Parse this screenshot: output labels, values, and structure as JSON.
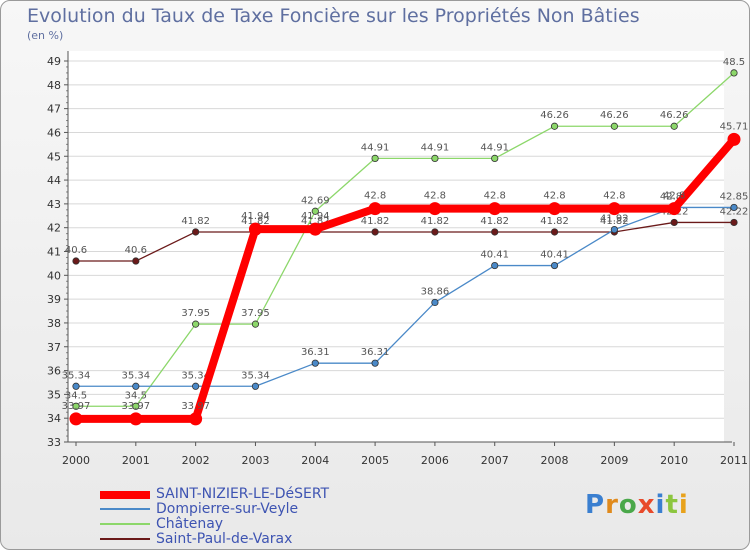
{
  "title": "Evolution du Taux de Taxe Foncière sur les Propriétés Non Bâties",
  "unit": "(en %)",
  "logo_text": "Proxiti",
  "chart_data": {
    "type": "line",
    "title": "Evolution du Taux de Taxe Foncière sur les Propriétés Non Bâties",
    "ylabel": "(en %)",
    "x": [
      "2000",
      "2001",
      "2002",
      "2003",
      "2004",
      "2005",
      "2006",
      "2007",
      "2008",
      "2009",
      "2010",
      "2011"
    ],
    "ylim": [
      33,
      49
    ],
    "yticks": [
      33,
      34,
      35,
      36,
      37,
      38,
      39,
      40,
      41,
      42,
      43,
      44,
      45,
      46,
      47,
      48,
      49
    ],
    "series": [
      {
        "name": "Saint-Paul-de-Varax",
        "color": "#6b1a1a",
        "values": [
          40.6,
          40.6,
          41.82,
          41.82,
          41.82,
          41.82,
          41.82,
          41.82,
          41.82,
          41.82,
          42.22,
          42.22
        ],
        "labels": [
          "40.6",
          "40.6",
          "41.82",
          "41.82",
          "41.82",
          "41.82",
          "41.82",
          "41.82",
          "41.82",
          "41.82",
          "42.22",
          "42.22"
        ]
      },
      {
        "name": "Châtenay",
        "color": "#8cd76a",
        "values": [
          34.5,
          34.5,
          37.95,
          37.95,
          42.69,
          44.91,
          44.91,
          44.91,
          46.26,
          46.26,
          46.26,
          48.5
        ],
        "labels": [
          "34.5",
          "34.5",
          "37.95",
          "37.95",
          "42.69",
          "44.91",
          "44.91",
          "44.91",
          "46.26",
          "46.26",
          "46.26",
          "48.5"
        ]
      },
      {
        "name": "Dompierre-sur-Veyle",
        "color": "#4a89c8",
        "values": [
          35.34,
          35.34,
          35.34,
          35.34,
          36.31,
          36.31,
          38.86,
          40.41,
          40.41,
          41.92,
          42.85,
          42.85
        ],
        "labels": [
          "35.34",
          "35.34",
          "35.34",
          "35.34",
          "36.31",
          "36.31",
          "38.86",
          "40.41",
          "40.41",
          "41.92",
          "42.85",
          "42.85"
        ]
      },
      {
        "name": "SAINT-NIZIER-LE-DéSERT",
        "color": "#ff0000",
        "values": [
          33.97,
          33.97,
          33.97,
          41.94,
          41.94,
          42.8,
          42.8,
          42.8,
          42.8,
          42.8,
          42.8,
          45.71
        ],
        "labels": [
          "33.97",
          "33.97",
          "33.97",
          "41.94",
          "41.94",
          "42.8",
          "42.8",
          "42.8",
          "42.8",
          "42.8",
          "42.8",
          "45.71"
        ]
      }
    ],
    "legend_order": [
      "SAINT-NIZIER-LE-DéSERT",
      "Dompierre-sur-Veyle",
      "Châtenay",
      "Saint-Paul-de-Varax"
    ]
  }
}
